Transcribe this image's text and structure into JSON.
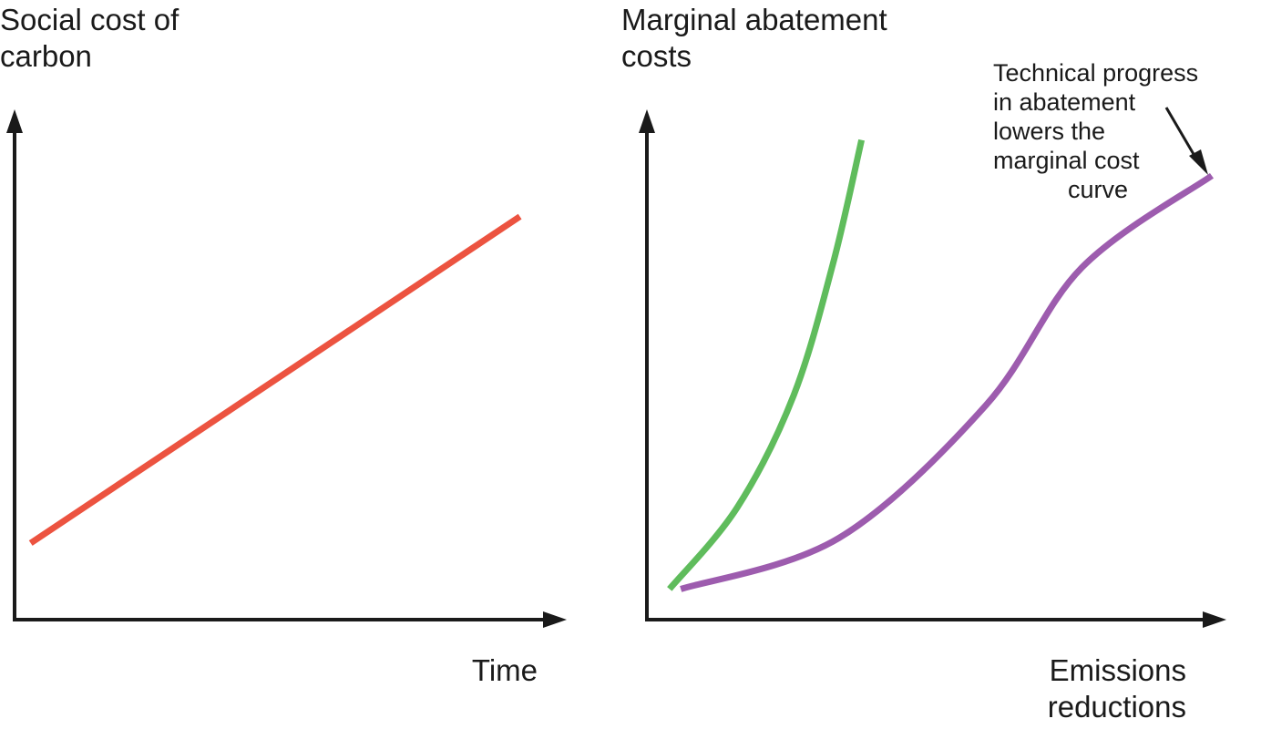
{
  "chart_data": [
    {
      "type": "line",
      "ylabel": "Social cost of\ncarbon",
      "xlabel": "Time",
      "series": [
        {
          "values": [
            [
              0.03,
              0.15
            ],
            [
              0.94,
              0.79
            ]
          ],
          "color": "#ec5340"
        }
      ],
      "xlim": [
        0,
        1
      ],
      "ylim": [
        0,
        1
      ],
      "ticks": "none",
      "grid": false
    },
    {
      "type": "line",
      "ylabel": "Marginal abatement\ncosts",
      "xlabel": "Emissions\nreductions",
      "series": [
        {
          "values": [
            [
              0.04,
              0.06
            ],
            [
              0.16,
              0.22
            ],
            [
              0.26,
              0.44
            ],
            [
              0.33,
              0.7
            ],
            [
              0.38,
              0.94
            ]
          ],
          "color": "#5fbc5c"
        },
        {
          "values": [
            [
              0.06,
              0.06
            ],
            [
              0.34,
              0.16
            ],
            [
              0.6,
              0.42
            ],
            [
              0.77,
              0.69
            ],
            [
              1.0,
              0.87
            ]
          ],
          "color": "#9d5cae"
        }
      ],
      "annotations": [
        {
          "text": "Technical progress\nin abatement\nlowers the\nmarginal cost\ncurve",
          "target": "purple curve",
          "arrow": true
        }
      ],
      "xlim": [
        0,
        1
      ],
      "ylim": [
        0,
        1
      ],
      "ticks": "none",
      "grid": false
    }
  ],
  "style": {
    "axis_color": "#1a1a1a",
    "background": "#ffffff"
  }
}
